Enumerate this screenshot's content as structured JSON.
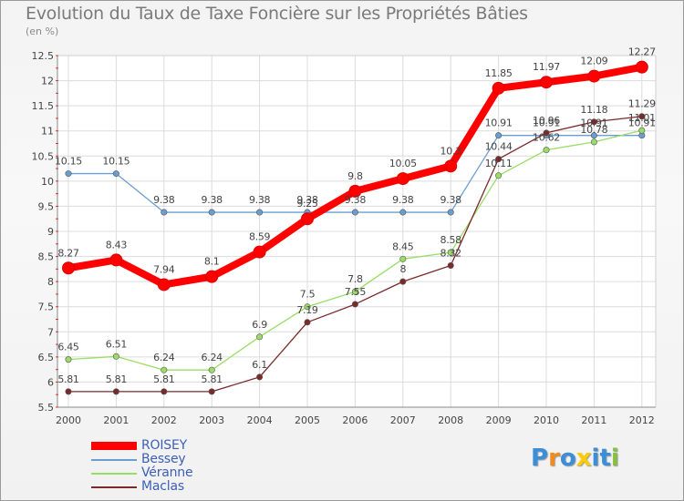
{
  "chart_data": {
    "type": "line",
    "title": "Evolution du Taux de Taxe Foncière sur les Propriétés Bâties",
    "subtitle": "(en %)",
    "xlabel": "",
    "ylabel": "",
    "categories": [
      "2000",
      "2001",
      "2002",
      "2003",
      "2004",
      "2005",
      "2006",
      "2007",
      "2008",
      "2009",
      "2010",
      "2011",
      "2012"
    ],
    "ylim": [
      5.5,
      12.5
    ],
    "yticks": [
      "5.5",
      "6",
      "6.5",
      "7",
      "7.5",
      "8",
      "8.5",
      "9",
      "9.5",
      "10",
      "10.5",
      "11",
      "11.5",
      "12",
      "12.5"
    ],
    "grid": true,
    "legend_position": "bottom-left",
    "series": [
      {
        "name": "ROISEY",
        "color": "#ff0000",
        "values": [
          8.27,
          8.43,
          7.94,
          8.1,
          8.59,
          9.25,
          9.8,
          10.05,
          10.3,
          11.85,
          11.97,
          12.09,
          12.27
        ],
        "labels": [
          "8.27",
          "8.43",
          "7.94",
          "8.1",
          "8.59",
          "9.25",
          "9.8",
          "10.05",
          "10.3",
          "11.85",
          "11.97",
          "12.09",
          "12.27"
        ]
      },
      {
        "name": "Bessey",
        "color": "#6a9ed0",
        "values": [
          10.15,
          10.15,
          9.38,
          9.38,
          9.38,
          9.38,
          9.38,
          9.38,
          9.38,
          10.91,
          10.91,
          10.91,
          10.91
        ],
        "labels": [
          "10.15",
          "10.15",
          "9.38",
          "9.38",
          "9.38",
          "9.38",
          "9.38",
          "9.38",
          "9.38",
          "10.91",
          "10.91",
          "10.91",
          "10.91"
        ]
      },
      {
        "name": "Véranne",
        "color": "#99dd66",
        "values": [
          6.45,
          6.51,
          6.24,
          6.24,
          6.9,
          7.5,
          7.8,
          8.45,
          8.58,
          10.11,
          10.62,
          10.78,
          11.01
        ],
        "labels": [
          "6.45",
          "6.51",
          "6.24",
          "6.24",
          "6.9",
          "7.5",
          "7.8",
          "8.45",
          "8.58",
          "10.11",
          "10.62",
          "10.78",
          "11.01"
        ]
      },
      {
        "name": "Maclas",
        "color": "#7a2a2a",
        "values": [
          5.81,
          5.81,
          5.81,
          5.81,
          6.1,
          7.19,
          7.55,
          8,
          8.32,
          10.44,
          10.96,
          11.18,
          11.29
        ],
        "labels": [
          "5.81",
          "5.81",
          "5.81",
          "5.81",
          "6.1",
          "7.19",
          "7.55",
          "8",
          "8.32",
          "10.44",
          "10.96",
          "11.18",
          "11.29"
        ]
      }
    ]
  },
  "logo": {
    "text": "Proxiti",
    "letters": [
      "P",
      "r",
      "o",
      "x",
      "i",
      "t",
      "i"
    ],
    "colors": [
      "#3a8fd8",
      "#f28a1c",
      "#3a8fd8",
      "#ffcc00",
      "#3a8fd8",
      "#3a8fd8",
      "#88c040"
    ]
  }
}
